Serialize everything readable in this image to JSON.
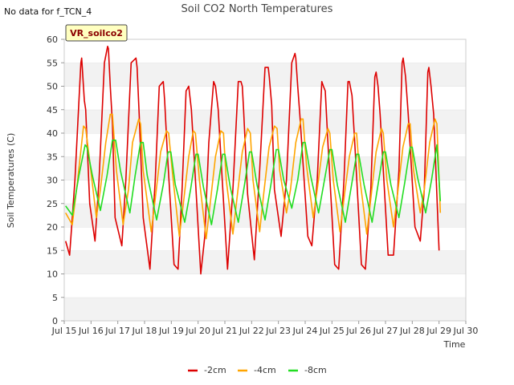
{
  "note": "No data for f_TCN_4",
  "chart_data": {
    "type": "line",
    "title": "Soil CO2 North Temperatures",
    "badge": "VR_soilco2",
    "xlabel": "Time",
    "ylabel": "Soil Temperatures (C)",
    "ylim": [
      0,
      60
    ],
    "yticks": [
      0,
      5,
      10,
      15,
      20,
      25,
      30,
      35,
      40,
      45,
      50,
      55,
      60
    ],
    "xlim": [
      15,
      30
    ],
    "xticks": [
      15,
      16,
      17,
      18,
      19,
      20,
      21,
      22,
      23,
      24,
      25,
      26,
      27,
      28,
      29,
      30
    ],
    "xtick_labels": [
      "Jul 15",
      "Jul 16",
      "Jul 17",
      "Jul 18",
      "Jul 19",
      "Jul 20",
      "Jul 21",
      "Jul 22",
      "Jul 23",
      "Jul 24",
      "Jul 25",
      "Jul 26",
      "Jul 27",
      "Jul 28",
      "Jul 29",
      "Jul 30"
    ],
    "grid": "horizontal bands",
    "legend_position": "bottom-center",
    "series": [
      {
        "name": "-2cm",
        "color": "#dd0000",
        "x": [
          15.05,
          15.2,
          15.4,
          15.62,
          15.65,
          15.75,
          15.8,
          15.95,
          16.15,
          16.3,
          16.5,
          16.62,
          16.65,
          16.72,
          16.8,
          16.9,
          17.15,
          17.3,
          17.5,
          17.68,
          17.72,
          17.8,
          17.95,
          18.2,
          18.4,
          18.55,
          18.7,
          18.75,
          18.85,
          19.1,
          19.25,
          19.4,
          19.55,
          19.65,
          19.75,
          19.85,
          20.1,
          20.25,
          20.4,
          20.58,
          20.65,
          20.75,
          20.85,
          21.1,
          21.3,
          21.5,
          21.6,
          21.65,
          21.7,
          21.85,
          22.1,
          22.3,
          22.5,
          22.62,
          22.66,
          22.75,
          22.85,
          23.1,
          23.3,
          23.5,
          23.62,
          23.65,
          23.72,
          23.8,
          24.1,
          24.25,
          24.45,
          24.62,
          24.68,
          24.75,
          24.85,
          25.1,
          25.25,
          25.45,
          25.6,
          25.65,
          25.75,
          25.85,
          26.1,
          26.25,
          26.45,
          26.6,
          26.65,
          26.72,
          26.8,
          27.1,
          27.3,
          27.5,
          27.62,
          27.66,
          27.75,
          27.85,
          28.1,
          28.3,
          28.45,
          28.58,
          28.62,
          28.7,
          28.8,
          29.0
        ],
        "y": [
          17,
          14,
          30,
          55,
          56,
          47,
          45,
          25,
          17,
          30,
          55,
          58.5,
          58,
          50,
          42,
          22,
          16,
          30,
          55,
          56,
          54,
          44,
          22,
          11,
          30,
          50,
          51,
          47,
          36,
          12,
          11,
          28,
          49,
          50,
          45,
          35,
          10,
          18,
          38,
          51,
          50,
          45,
          35,
          11,
          28,
          51,
          51,
          50,
          45,
          27,
          13,
          32,
          54,
          54,
          52,
          46,
          28,
          18,
          30,
          55,
          57,
          56,
          50,
          44,
          18,
          16,
          30,
          51,
          50,
          49,
          38,
          12,
          11,
          30,
          51,
          51,
          48,
          38,
          12,
          11,
          28,
          52,
          53,
          50,
          44,
          14,
          14,
          32,
          55,
          56,
          52,
          44,
          20,
          17,
          28,
          53,
          54,
          50,
          44,
          15
        ]
      },
      {
        "name": "-4cm",
        "color": "#ffa500",
        "x": [
          15.05,
          15.3,
          15.5,
          15.72,
          15.8,
          15.95,
          16.2,
          16.35,
          16.55,
          16.72,
          16.8,
          16.95,
          17.2,
          17.4,
          17.55,
          17.78,
          17.85,
          17.95,
          18.25,
          18.4,
          18.6,
          18.82,
          18.9,
          19.05,
          19.3,
          19.45,
          19.65,
          19.82,
          19.9,
          20.05,
          20.3,
          20.45,
          20.65,
          20.85,
          20.95,
          21.05,
          21.3,
          21.45,
          21.65,
          21.85,
          21.95,
          22.05,
          22.3,
          22.45,
          22.65,
          22.85,
          22.95,
          23.05,
          23.3,
          23.45,
          23.65,
          23.85,
          23.92,
          24.05,
          24.3,
          24.45,
          24.65,
          24.85,
          24.92,
          25.05,
          25.3,
          25.45,
          25.65,
          25.85,
          25.92,
          26.05,
          26.3,
          26.45,
          26.65,
          26.85,
          26.92,
          27.05,
          27.3,
          27.45,
          27.65,
          27.85,
          27.92,
          28.05,
          28.3,
          28.45,
          28.65,
          28.85,
          28.92,
          29.05
        ],
        "y": [
          23,
          20.5,
          30,
          41.5,
          41,
          34,
          22,
          28,
          38,
          44,
          44,
          32,
          20.5,
          28,
          38,
          43,
          42,
          32,
          19,
          26,
          36,
          40.5,
          40,
          31,
          18,
          25,
          35,
          40.5,
          40,
          30,
          17.5,
          25,
          35,
          40.5,
          40,
          30,
          18.5,
          26,
          36,
          41,
          40,
          30,
          19,
          27,
          37,
          41.5,
          41,
          32,
          23,
          28,
          38,
          43,
          43,
          33,
          22,
          28,
          37,
          41,
          40,
          30,
          19,
          26,
          35,
          40,
          40,
          30,
          18.5,
          26,
          36,
          41,
          40,
          30,
          20,
          27,
          37,
          42,
          42,
          32,
          23,
          28,
          38,
          43,
          42,
          23
        ]
      },
      {
        "name": "-8cm",
        "color": "#22dd22",
        "x": [
          15.05,
          15.3,
          15.55,
          15.78,
          15.85,
          16.05,
          16.35,
          16.6,
          16.8,
          16.92,
          17.1,
          17.45,
          17.65,
          17.85,
          17.95,
          18.1,
          18.45,
          18.7,
          18.88,
          18.98,
          19.15,
          19.5,
          19.72,
          19.92,
          20.0,
          20.2,
          20.5,
          20.72,
          20.92,
          21.0,
          21.2,
          21.5,
          21.72,
          21.92,
          22.0,
          22.2,
          22.5,
          22.72,
          22.92,
          23.0,
          23.2,
          23.5,
          23.72,
          23.92,
          24.0,
          24.2,
          24.5,
          24.72,
          24.92,
          25.0,
          25.2,
          25.5,
          25.72,
          25.92,
          26.0,
          26.2,
          26.5,
          26.72,
          26.92,
          27.0,
          27.2,
          27.5,
          27.72,
          27.92,
          28.0,
          28.2,
          28.5,
          28.72,
          28.92,
          29.05
        ],
        "y": [
          24.5,
          22.5,
          31,
          37.5,
          37,
          31,
          23.5,
          31,
          38.5,
          38.5,
          32,
          23,
          31,
          38,
          38,
          31,
          21.5,
          29,
          36,
          36,
          29,
          21,
          28,
          35.5,
          35.5,
          28.5,
          20.5,
          28,
          35.5,
          35.5,
          28.5,
          21,
          28.5,
          36,
          36,
          29,
          21.5,
          29,
          36.5,
          36.5,
          30,
          24,
          30,
          38,
          38,
          31,
          23,
          30,
          36.5,
          36.5,
          29,
          21,
          28.5,
          35.5,
          35.5,
          29,
          21,
          29,
          36,
          36,
          29,
          22,
          29.5,
          37,
          37,
          30.5,
          23,
          30,
          37.5,
          25.5
        ]
      }
    ]
  }
}
